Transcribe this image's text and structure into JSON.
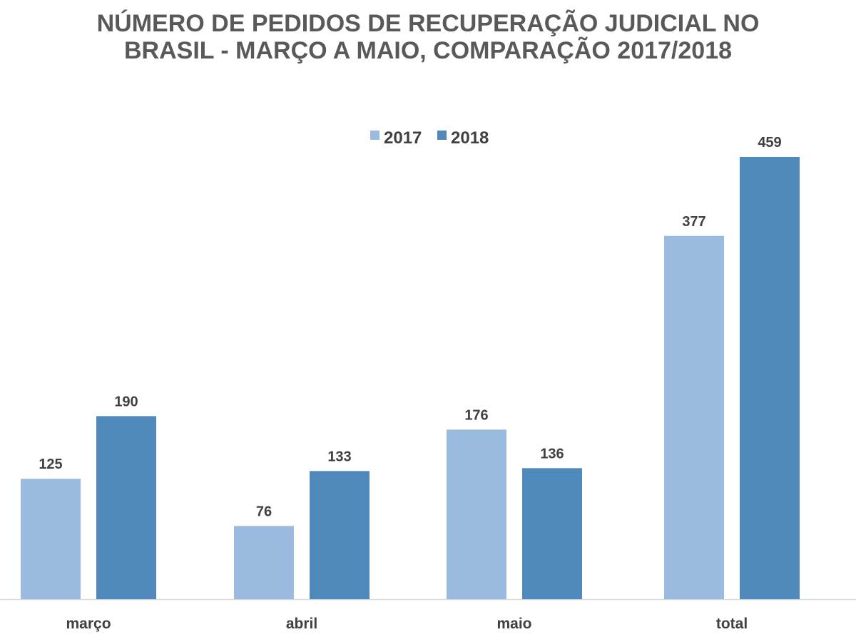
{
  "chart_data": {
    "type": "bar",
    "title_lines": [
      "NÚMERO DE PEDIDOS DE RECUPERAÇÃO JUDICIAL NO",
      "BRASIL - MARÇO A MAIO, COMPARAÇÃO 2017/2018"
    ],
    "categories": [
      "março",
      "abril",
      "maio",
      "total"
    ],
    "series": [
      {
        "name": "2017",
        "values": [
          125,
          76,
          176,
          377
        ],
        "color": "#9BBADF"
      },
      {
        "name": "2018",
        "values": [
          190,
          133,
          136,
          459
        ],
        "color": "#4F89BC"
      }
    ],
    "xlabel": "",
    "ylabel": "",
    "ylim": [
      0,
      500
    ],
    "grid": false,
    "legend": "top-center",
    "data_labels": true
  }
}
